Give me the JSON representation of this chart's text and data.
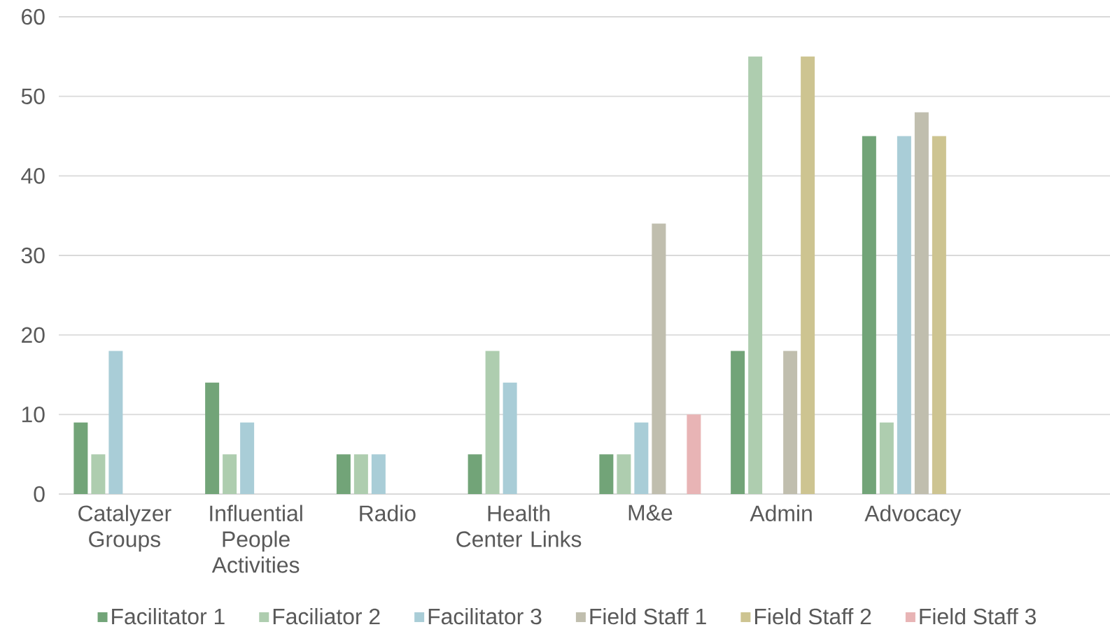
{
  "chart_data": {
    "type": "bar",
    "categories": [
      "Catalyzer Groups",
      "Influential People Activities",
      "Radio",
      "Health Center Links",
      "M&e",
      "Admin",
      "Advocacy",
      null
    ],
    "series": [
      {
        "name": "Facilitator 1",
        "color": "#72a478",
        "values": [
          9,
          14,
          5,
          5,
          5,
          18,
          45,
          null
        ]
      },
      {
        "name": "Faciliator 2",
        "color": "#aecdaf",
        "values": [
          5,
          5,
          5,
          18,
          5,
          55,
          9,
          null
        ]
      },
      {
        "name": "Facilitator 3",
        "color": "#a9cdd7",
        "values": [
          18,
          9,
          5,
          14,
          9,
          null,
          45,
          null
        ]
      },
      {
        "name": "Field Staff 1",
        "color": "#c0beae",
        "values": [
          null,
          null,
          null,
          null,
          34,
          18,
          48,
          null
        ]
      },
      {
        "name": "Field Staff 2",
        "color": "#cdc491",
        "values": [
          null,
          null,
          null,
          null,
          null,
          55,
          45,
          null
        ]
      },
      {
        "name": "Field Staff 3",
        "color": "#e8b4b5",
        "values": [
          null,
          null,
          null,
          null,
          10,
          null,
          null,
          null
        ]
      }
    ],
    "ylim": [
      0,
      60
    ],
    "yticks": [
      0,
      10,
      20,
      30,
      40,
      50,
      60
    ],
    "grid": "y",
    "legend": "bottom"
  }
}
